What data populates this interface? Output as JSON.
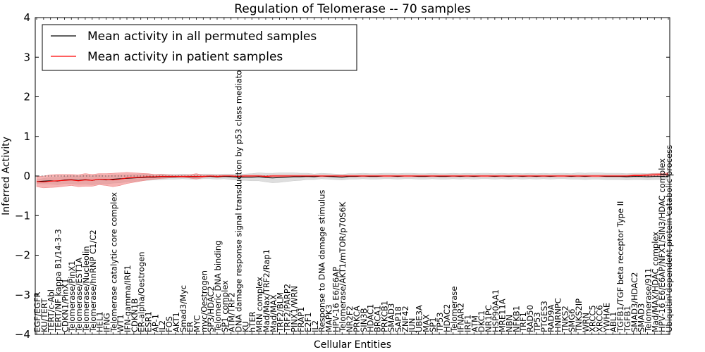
{
  "chart_data": {
    "type": "line",
    "title": "Regulation of Telomerase -- 70 samples",
    "xlabel": "Cellular Entities",
    "ylabel": "Inferred Activity",
    "ylim": [
      -4,
      4
    ],
    "yticks": [
      -4,
      -3,
      -2,
      -1,
      0,
      1,
      2,
      3,
      4
    ],
    "ytick_labels": [
      "−4",
      "−3",
      "−2",
      "−1",
      "0",
      "1",
      "2",
      "3",
      "4"
    ],
    "reference_line": 0,
    "legend_position": "top-left",
    "colors": {
      "permuted_line": "#000000",
      "patient_line": "#ff0000",
      "permuted_band": "#c8c8c8",
      "patient_band": "#f08080",
      "reference": "#555555"
    },
    "categories": [
      "EGF/EGFR",
      "KU/TERT",
      "TERT/c-Abl",
      "TERT/NF kappa B1/14-3-3",
      "CDKN1/PinX1",
      "Telomerase/PinX1",
      "Telomerase/EST1A",
      "Telomerase/Nucleolin",
      "Telomerase/hnRNP C1/C2",
      "HEL1",
      "IFNG",
      "Telomerase catalytic core complex",
      "WT1",
      "IFN-gamma/IRF1",
      "CDKN1B",
      "ER-alpha/Oestrogen",
      "ESR1",
      "AP-1",
      "IL2",
      "FOS",
      "AKT1",
      "Smad3/Myc",
      "ER",
      "MYC",
      "myc/Oestrogen",
      "SP3/HDAC2",
      "Telomeric DNA binding",
      "SP1 complex",
      "ATM/TRF2",
      "DNA damage response signal transduction by p53 class mediator",
      "KU",
      "hTER",
      "MRN complex",
      "Mad/Max/TRF2/Rap1",
      "Mad/MAX",
      "TRF2/BLM",
      "TRF2/PARP2",
      "PINX1/WRN",
      "FRAP1",
      "E2F1",
      "IL2",
      "Response to DNA damage stimulus",
      "MAPK3",
      "HPV-16 E6/E6AP",
      "Telomerase/AKT1/mTOR/p70S6K",
      "NR2F2",
      "PRKCA",
      "SIN3B",
      "HDAC1",
      "BRCA1",
      "PRKCB1",
      "SMAD3",
      "SAP18",
      "ZNF42",
      "JUN",
      "UBE3A",
      "MAX",
      "SP1",
      "TP53",
      "HDAC2",
      "Telomerase",
      "IFNAR2",
      "IRF1",
      "ATM",
      "DKC1",
      "NR1PC",
      "HSP90AA1",
      "MRE11A",
      "NBN",
      "NFKB1",
      "TRF1",
      "RAD50",
      "TP53",
      "PTGES3",
      "RAD9A",
      "HNRNPC",
      "TNKS2",
      "SMG6",
      "TNKS2IP",
      "WRN",
      "XRCC5",
      "XRCC6",
      "YWHAE",
      "ABL1",
      "TGFB1/TGF beta receptor Type II",
      "TGFB1",
      "SMAD3/HDAC2",
      "SMAD3",
      "Telomerase/911",
      "Mad/MAX/HDAC complex",
      "HPV-16 E6/E6AP/NFX1/SIN3/HDAC complex",
      "Ubiquitin-dependent protein catabolic process"
    ],
    "series": [
      {
        "name": "Mean activity in all permuted samples",
        "color": "#000000",
        "values": [
          -0.14,
          -0.13,
          -0.12,
          -0.13,
          -0.1,
          -0.09,
          -0.11,
          -0.09,
          -0.11,
          -0.08,
          -0.1,
          -0.08,
          -0.07,
          -0.06,
          -0.05,
          -0.04,
          -0.03,
          -0.03,
          -0.02,
          -0.02,
          -0.02,
          -0.01,
          -0.02,
          -0.02,
          -0.01,
          -0.01,
          -0.02,
          -0.01,
          -0.02,
          -0.03,
          -0.03,
          -0.03,
          -0.02,
          -0.04,
          -0.05,
          -0.04,
          -0.03,
          -0.02,
          -0.02,
          -0.01,
          -0.02,
          0.0,
          -0.01,
          -0.02,
          -0.03,
          -0.01,
          -0.01,
          0.0,
          -0.01,
          -0.01,
          0.0,
          0.0,
          -0.01,
          0.0,
          0.0,
          -0.01,
          -0.01,
          0.0,
          -0.01,
          -0.01,
          0.0,
          -0.01,
          0.0,
          -0.01,
          0.0,
          0.0,
          -0.01,
          0.0,
          -0.01,
          0.0,
          -0.01,
          0.0,
          -0.01,
          0.0,
          -0.01,
          0.0,
          0.0,
          -0.01,
          0.0,
          -0.01,
          0.0,
          0.0,
          -0.01,
          -0.01,
          -0.01,
          -0.02,
          -0.01,
          -0.01,
          -0.02,
          -0.01,
          -0.01,
          -0.02
        ],
        "band": [
          0.05,
          0.07,
          0.08,
          0.09,
          0.09,
          0.1,
          0.1,
          0.11,
          0.11,
          0.11,
          0.1,
          0.1,
          0.1,
          0.09,
          0.09,
          0.08,
          0.08,
          0.07,
          0.07,
          0.06,
          0.06,
          0.06,
          0.06,
          0.06,
          0.06,
          0.06,
          0.06,
          0.06,
          0.07,
          0.08,
          0.08,
          0.09,
          0.1,
          0.11,
          0.12,
          0.12,
          0.11,
          0.1,
          0.09,
          0.08,
          0.07,
          0.07,
          0.07,
          0.07,
          0.07,
          0.07,
          0.07,
          0.07,
          0.07,
          0.07,
          0.07,
          0.07,
          0.07,
          0.07,
          0.07,
          0.07,
          0.07,
          0.07,
          0.07,
          0.07,
          0.07,
          0.07,
          0.07,
          0.07,
          0.07,
          0.07,
          0.07,
          0.07,
          0.07,
          0.07,
          0.07,
          0.07,
          0.07,
          0.07,
          0.07,
          0.07,
          0.07,
          0.07,
          0.08,
          0.08,
          0.08,
          0.08,
          0.08,
          0.08,
          0.08,
          0.08,
          0.08,
          0.08,
          0.08,
          0.08,
          0.08,
          0.09
        ]
      },
      {
        "name": "Mean activity in patient samples",
        "color": "#ff0000",
        "values": [
          -0.14,
          -0.15,
          -0.13,
          -0.12,
          -0.11,
          -0.1,
          -0.12,
          -0.1,
          -0.11,
          -0.08,
          -0.09,
          -0.1,
          -0.08,
          -0.05,
          -0.04,
          -0.03,
          -0.02,
          -0.02,
          -0.01,
          -0.01,
          -0.01,
          -0.01,
          -0.01,
          -0.01,
          -0.01,
          0.0,
          -0.01,
          0.0,
          0.0,
          -0.01,
          0.0,
          0.0,
          0.0,
          -0.01,
          0.0,
          0.0,
          0.0,
          0.0,
          0.0,
          0.0,
          0.0,
          0.0,
          0.0,
          0.0,
          0.0,
          0.0,
          0.0,
          0.0,
          0.0,
          0.0,
          0.0,
          0.0,
          0.0,
          0.0,
          0.0,
          0.0,
          0.0,
          0.0,
          0.0,
          0.0,
          0.0,
          0.0,
          0.0,
          0.0,
          0.0,
          0.0,
          0.0,
          0.0,
          0.0,
          0.0,
          0.0,
          0.0,
          0.0,
          0.0,
          0.0,
          0.0,
          0.0,
          0.0,
          0.0,
          0.0,
          0.0,
          0.0,
          0.0,
          0.0,
          0.0,
          0.0,
          0.01,
          0.01,
          0.02,
          0.03,
          0.04,
          0.05
        ],
        "band": [
          0.13,
          0.15,
          0.16,
          0.16,
          0.15,
          0.14,
          0.15,
          0.16,
          0.15,
          0.14,
          0.15,
          0.17,
          0.16,
          0.14,
          0.12,
          0.1,
          0.08,
          0.06,
          0.05,
          0.04,
          0.03,
          0.03,
          0.04,
          0.07,
          0.03,
          0.02,
          0.03,
          0.02,
          0.02,
          0.02,
          0.02,
          0.02,
          0.02,
          0.02,
          0.02,
          0.02,
          0.02,
          0.02,
          0.02,
          0.02,
          0.02,
          0.02,
          0.02,
          0.02,
          0.02,
          0.02,
          0.02,
          0.02,
          0.02,
          0.02,
          0.02,
          0.02,
          0.02,
          0.02,
          0.02,
          0.02,
          0.02,
          0.02,
          0.02,
          0.02,
          0.02,
          0.02,
          0.02,
          0.02,
          0.02,
          0.02,
          0.02,
          0.02,
          0.02,
          0.02,
          0.02,
          0.02,
          0.02,
          0.02,
          0.02,
          0.02,
          0.02,
          0.02,
          0.02,
          0.02,
          0.02,
          0.02,
          0.02,
          0.02,
          0.02,
          0.02,
          0.03,
          0.03,
          0.03,
          0.03,
          0.03,
          0.03
        ]
      }
    ]
  }
}
